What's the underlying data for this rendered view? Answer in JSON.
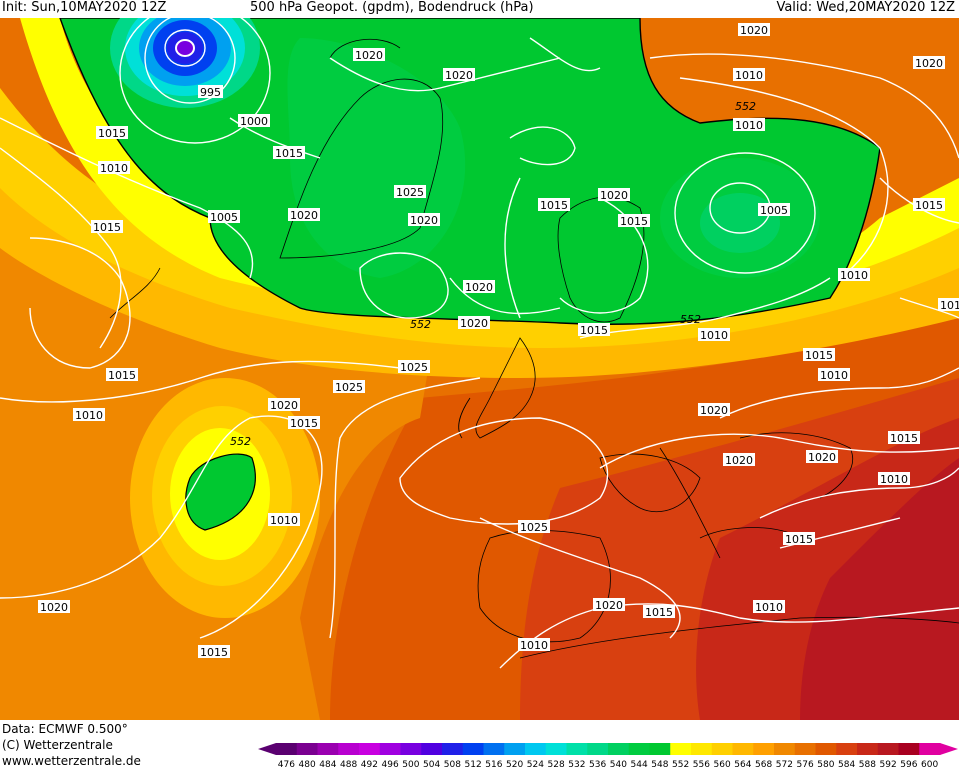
{
  "header": {
    "init": "Init: Sun,10MAY2020 12Z",
    "title": "500 hPa Geopot. (gpdm), Bodendruck (hPa)",
    "valid": "Valid: Wed,20MAY2020 12Z"
  },
  "footer": {
    "data": "Data: ECMWF   0.500°",
    "copyright": "(C) Wetterzentrale",
    "url": "www.wetterzentrale.de"
  },
  "legend": {
    "values": [
      "476",
      "480",
      "484",
      "488",
      "492",
      "496",
      "500",
      "504",
      "508",
      "512",
      "516",
      "520",
      "524",
      "528",
      "532",
      "536",
      "540",
      "544",
      "548",
      "552",
      "556",
      "560",
      "564",
      "568",
      "572",
      "576",
      "580",
      "584",
      "588",
      "592",
      "596",
      "600"
    ],
    "colors": [
      "#5a0070",
      "#7a0090",
      "#9a00b0",
      "#b800d0",
      "#c800e0",
      "#a000e0",
      "#7800e0",
      "#5000e0",
      "#2020e8",
      "#0040f0",
      "#0070f0",
      "#00a0f0",
      "#00c8f0",
      "#00e0d8",
      "#00e0a8",
      "#00d888",
      "#00d060",
      "#00cc40",
      "#00c830",
      "#ffff00",
      "#ffe800",
      "#ffd000",
      "#ffb800",
      "#ffa000",
      "#f08800",
      "#e87000",
      "#e05800",
      "#d84010",
      "#c82818",
      "#b81820",
      "#a80020",
      "#e000a0"
    ]
  },
  "isobar_labels": [
    {
      "text": "995"
    },
    {
      "text": "1000"
    },
    {
      "text": "1005"
    },
    {
      "text": "1010"
    },
    {
      "text": "1015"
    },
    {
      "text": "1015"
    },
    {
      "text": "1015"
    },
    {
      "text": "1010"
    },
    {
      "text": "1020"
    },
    {
      "text": "1020"
    },
    {
      "text": "1025"
    },
    {
      "text": "1020"
    },
    {
      "text": "1015"
    },
    {
      "text": "1020"
    },
    {
      "text": "1015"
    },
    {
      "text": "1020"
    },
    {
      "text": "1005"
    },
    {
      "text": "1010"
    },
    {
      "text": "1010"
    },
    {
      "text": "1010"
    },
    {
      "text": "1015"
    },
    {
      "text": "1020"
    },
    {
      "text": "1015"
    },
    {
      "text": "1010"
    },
    {
      "text": "1025"
    },
    {
      "text": "1025"
    },
    {
      "text": "1015"
    },
    {
      "text": "1020"
    },
    {
      "text": "1020"
    },
    {
      "text": "1015"
    },
    {
      "text": "1020"
    },
    {
      "text": "1020"
    },
    {
      "text": "1015"
    },
    {
      "text": "1010"
    },
    {
      "text": "1015"
    },
    {
      "text": "1010"
    },
    {
      "text": "1025"
    },
    {
      "text": "1020"
    },
    {
      "text": "1015"
    },
    {
      "text": "1020"
    },
    {
      "text": "1015"
    },
    {
      "text": "1010"
    },
    {
      "text": "1020"
    },
    {
      "text": "1010"
    },
    {
      "text": "1020"
    },
    {
      "text": "1015"
    },
    {
      "text": "1020"
    },
    {
      "text": "1015"
    },
    {
      "text": "1010"
    }
  ],
  "geopot_labels": [
    {
      "text": "552"
    },
    {
      "text": "552"
    },
    {
      "text": "552"
    },
    {
      "text": "552"
    }
  ]
}
